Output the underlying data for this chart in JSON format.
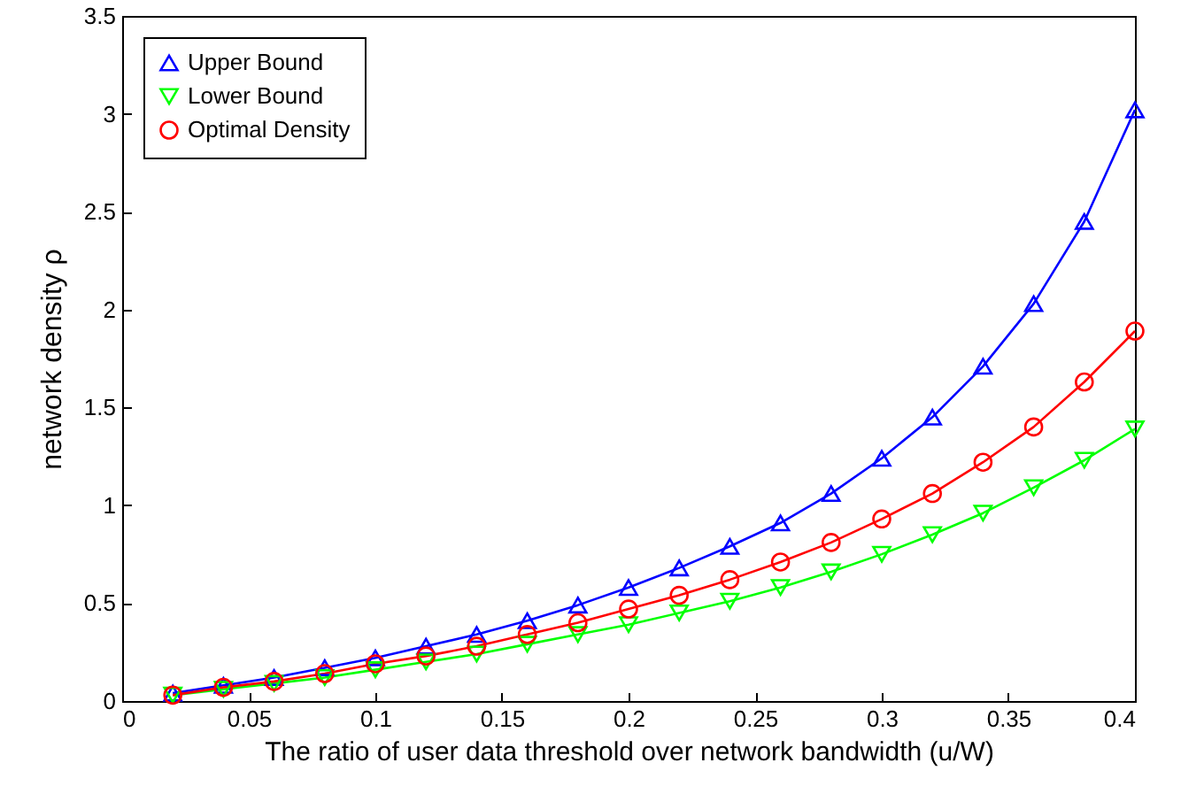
{
  "chart_data": {
    "type": "line",
    "xlabel": "The ratio of user data threshold over network bandwidth  (u/W)",
    "ylabel": "network density  ρ",
    "x": [
      0.02,
      0.04,
      0.06,
      0.08,
      0.1,
      0.12,
      0.14,
      0.16,
      0.18,
      0.2,
      0.22,
      0.24,
      0.26,
      0.28,
      0.3,
      0.32,
      0.34,
      0.36,
      0.38,
      0.4
    ],
    "series": [
      {
        "name": "Upper Bound",
        "color": "#0000ff",
        "marker": "triangle",
        "values": [
          0.04,
          0.08,
          0.12,
          0.17,
          0.22,
          0.28,
          0.34,
          0.41,
          0.49,
          0.58,
          0.68,
          0.79,
          0.91,
          1.06,
          1.24,
          1.45,
          1.71,
          2.03,
          2.45,
          3.02
        ]
      },
      {
        "name": "Lower Bound",
        "color": "#00ff00",
        "marker": "triangle-down",
        "values": [
          0.03,
          0.06,
          0.09,
          0.12,
          0.16,
          0.2,
          0.24,
          0.29,
          0.34,
          0.39,
          0.45,
          0.51,
          0.58,
          0.66,
          0.75,
          0.85,
          0.96,
          1.09,
          1.23,
          1.39
        ]
      },
      {
        "name": "Optimal Density",
        "color": "#ff0000",
        "marker": "circle",
        "values": [
          0.03,
          0.07,
          0.1,
          0.14,
          0.19,
          0.23,
          0.28,
          0.34,
          0.4,
          0.47,
          0.54,
          0.62,
          0.71,
          0.81,
          0.93,
          1.06,
          1.22,
          1.4,
          1.63,
          1.89
        ]
      }
    ],
    "xlim": [
      0,
      0.4
    ],
    "xticks": [
      0,
      0.05,
      0.1,
      0.15,
      0.2,
      0.25,
      0.3,
      0.35,
      0.4
    ],
    "ylim": [
      0,
      3.5
    ],
    "yticks": [
      0,
      0.5,
      1,
      1.5,
      2,
      2.5,
      3,
      3.5
    ],
    "grid": false,
    "legend": "top left",
    "line_style": "solid"
  }
}
